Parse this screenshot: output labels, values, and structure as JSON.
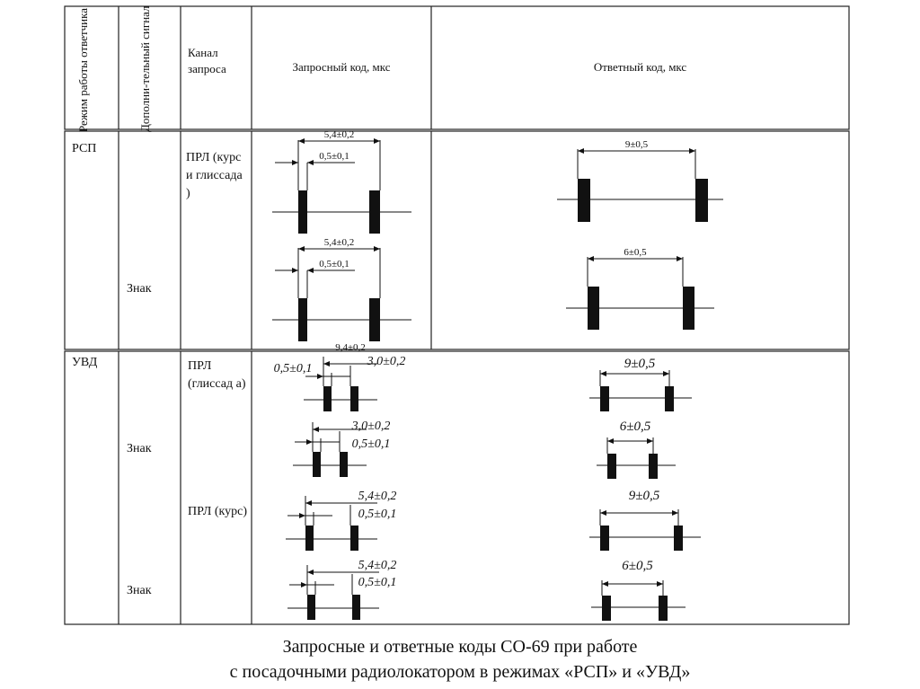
{
  "table": {
    "headers": {
      "mode": "Режим работы ответчика",
      "extra_signal": "Дополни-тельный сигнал",
      "channel": "Канал запроса",
      "request_code": "Запросный код, мкс",
      "response_code": "Ответный код, мкс"
    },
    "rows": [
      {
        "mode": "РСП",
        "channel": "ПРЛ (курс и глиссада )",
        "subrows": [
          {
            "extra": "",
            "req_outer": "5,4±0,2",
            "req_inner": "0,5±0,1",
            "resp": "9±0,5"
          },
          {
            "extra": "Знак",
            "req_outer": "5,4±0,2",
            "req_inner": "0,5±0,1",
            "resp": "6±0,5"
          }
        ]
      },
      {
        "mode": "УВД",
        "channels": [
          "ПРЛ (глиссад а)",
          "ПРЛ (курс)"
        ],
        "cut_label": "9,4±0,2",
        "subrows": [
          {
            "extra": "",
            "req_a": "0,5±0,1",
            "req_b": "3,0±0,2",
            "resp": "9±0,5"
          },
          {
            "extra": "Знак",
            "req_a": "3,0±0,2",
            "req_b": "0,5±0,1",
            "resp": "6±0,5"
          },
          {
            "extra": "",
            "req_a": "5,4±0,2",
            "req_b": "0,5±0,1",
            "resp": "9±0,5"
          },
          {
            "extra": "Знак",
            "req_a": "5,4±0,2",
            "req_b": "0,5±0,1",
            "resp": "6±0,5"
          }
        ]
      }
    ]
  },
  "caption": {
    "line1": "Запросные и ответные коды СО-69 при работе",
    "line2": "с посадочными радиолокатором в режимах «РСП» и «УВД»"
  }
}
